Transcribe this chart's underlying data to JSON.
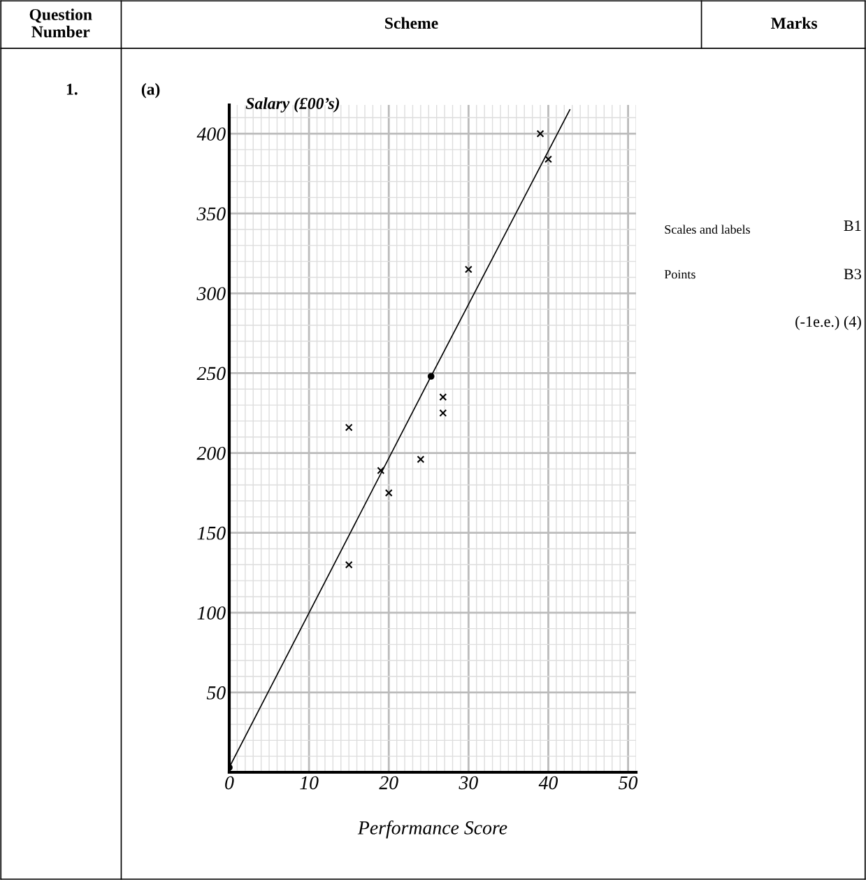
{
  "chart_data": {
    "type": "scatter",
    "xlabel": "Performance Score",
    "ylabel": "Salary (£00’s)",
    "series": [
      {
        "marker": "cross",
        "color": "#000000",
        "x": [
          15,
          15,
          19,
          20,
          24,
          26.8,
          26.8,
          30,
          39,
          40
        ],
        "values": [
          130,
          216,
          189,
          175,
          196,
          235,
          225,
          315,
          400,
          384
        ]
      },
      {
        "type": "scatter",
        "marker": "circle",
        "color": "#000000",
        "x": [
          0,
          25.3
        ],
        "values": [
          3,
          248
        ]
      },
      {
        "type": "line",
        "marker": "none",
        "color": "#000000",
        "x": [
          0,
          25.3,
          42.7
        ],
        "values": [
          3,
          248,
          415
        ]
      }
    ],
    "xlim": [
      0,
      51
    ],
    "ylim": [
      0,
      418
    ],
    "xticks": [
      0,
      10,
      20,
      30,
      40,
      50
    ],
    "yticks": [
      50,
      100,
      150,
      200,
      250,
      300,
      350,
      400
    ],
    "grid": true,
    "annotations": [
      "Question Number",
      "Scheme",
      "Marks",
      "1.",
      "(a)",
      "Scales and labels",
      "B1",
      "Points",
      "B3",
      "(-1e.e.) (4)"
    ]
  }
}
